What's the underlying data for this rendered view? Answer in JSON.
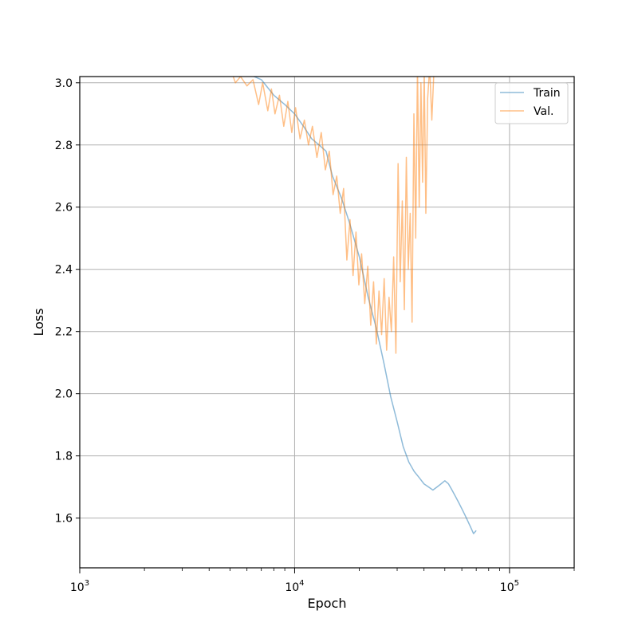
{
  "chart_data": {
    "type": "line",
    "xlabel": "Epoch",
    "ylabel": "Loss",
    "xscale": "log",
    "xlim": [
      1000,
      200000
    ],
    "ylim": [
      1.44,
      3.02
    ],
    "grid": true,
    "legend_position": "top-right",
    "x_ticks": [
      {
        "value": 1000,
        "base": "10",
        "exp": "3"
      },
      {
        "value": 10000,
        "base": "10",
        "exp": "4"
      },
      {
        "value": 100000,
        "base": "10",
        "exp": "5"
      }
    ],
    "y_ticks": [
      1.6,
      1.8,
      2.0,
      2.2,
      2.4,
      2.6,
      2.8,
      3.0
    ],
    "series": [
      {
        "name": "Train",
        "color": "#1f77b4",
        "points": [
          [
            4900,
            3.06
          ],
          [
            6000,
            3.03
          ],
          [
            7000,
            3.01
          ],
          [
            8000,
            2.96
          ],
          [
            9000,
            2.93
          ],
          [
            10000,
            2.9
          ],
          [
            11000,
            2.86
          ],
          [
            12000,
            2.82
          ],
          [
            13000,
            2.8
          ],
          [
            14000,
            2.78
          ],
          [
            15000,
            2.7
          ],
          [
            16500,
            2.63
          ],
          [
            18000,
            2.55
          ],
          [
            20000,
            2.44
          ],
          [
            22000,
            2.31
          ],
          [
            24000,
            2.21
          ],
          [
            26000,
            2.1
          ],
          [
            28000,
            1.99
          ],
          [
            30000,
            1.91
          ],
          [
            32000,
            1.83
          ],
          [
            34000,
            1.78
          ],
          [
            36000,
            1.75
          ],
          [
            38000,
            1.73
          ],
          [
            40000,
            1.71
          ],
          [
            42000,
            1.7
          ],
          [
            44000,
            1.69
          ],
          [
            46000,
            1.7
          ],
          [
            48000,
            1.71
          ],
          [
            50000,
            1.72
          ],
          [
            52000,
            1.71
          ],
          [
            54000,
            1.69
          ],
          [
            56000,
            1.67
          ],
          [
            58000,
            1.65
          ],
          [
            60000,
            1.63
          ],
          [
            62000,
            1.61
          ],
          [
            64000,
            1.59
          ],
          [
            66000,
            1.57
          ],
          [
            68000,
            1.55
          ],
          [
            70000,
            1.56
          ]
        ]
      },
      {
        "name": "Val.",
        "color": "#ff7f0e",
        "points": [
          [
            5000,
            3.05
          ],
          [
            5300,
            3.0
          ],
          [
            5600,
            3.02
          ],
          [
            6000,
            2.99
          ],
          [
            6400,
            3.01
          ],
          [
            6800,
            2.93
          ],
          [
            7100,
            3.0
          ],
          [
            7500,
            2.91
          ],
          [
            7800,
            2.98
          ],
          [
            8100,
            2.9
          ],
          [
            8500,
            2.96
          ],
          [
            8900,
            2.86
          ],
          [
            9300,
            2.94
          ],
          [
            9700,
            2.84
          ],
          [
            10100,
            2.92
          ],
          [
            10600,
            2.82
          ],
          [
            11100,
            2.88
          ],
          [
            11600,
            2.8
          ],
          [
            12100,
            2.86
          ],
          [
            12700,
            2.76
          ],
          [
            13300,
            2.84
          ],
          [
            13900,
            2.72
          ],
          [
            14500,
            2.78
          ],
          [
            15100,
            2.64
          ],
          [
            15700,
            2.7
          ],
          [
            16300,
            2.58
          ],
          [
            16900,
            2.66
          ],
          [
            17500,
            2.43
          ],
          [
            18100,
            2.56
          ],
          [
            18700,
            2.38
          ],
          [
            19300,
            2.52
          ],
          [
            19900,
            2.35
          ],
          [
            20500,
            2.45
          ],
          [
            21200,
            2.29
          ],
          [
            21900,
            2.41
          ],
          [
            22600,
            2.22
          ],
          [
            23300,
            2.36
          ],
          [
            24000,
            2.16
          ],
          [
            24700,
            2.33
          ],
          [
            25400,
            2.19
          ],
          [
            26100,
            2.37
          ],
          [
            26800,
            2.14
          ],
          [
            27500,
            2.31
          ],
          [
            28200,
            2.2
          ],
          [
            28900,
            2.44
          ],
          [
            29600,
            2.13
          ],
          [
            30300,
            2.74
          ],
          [
            31000,
            2.36
          ],
          [
            31700,
            2.62
          ],
          [
            32400,
            2.27
          ],
          [
            33100,
            2.76
          ],
          [
            33800,
            2.4
          ],
          [
            34500,
            2.58
          ],
          [
            35200,
            2.23
          ],
          [
            35900,
            2.9
          ],
          [
            36600,
            2.5
          ],
          [
            37300,
            3.05
          ],
          [
            38000,
            2.6
          ],
          [
            38700,
            3.0
          ],
          [
            39400,
            2.68
          ],
          [
            40100,
            3.04
          ],
          [
            40800,
            2.58
          ],
          [
            41600,
            2.95
          ],
          [
            42500,
            3.05
          ],
          [
            43500,
            2.88
          ],
          [
            44500,
            3.04
          ]
        ]
      }
    ]
  }
}
